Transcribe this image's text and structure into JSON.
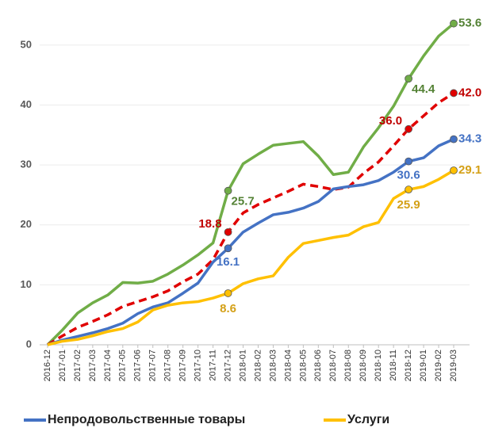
{
  "chart_data": {
    "type": "line",
    "categories": [
      "2016-12",
      "2017-01",
      "2017-02",
      "2017-03",
      "2017-04",
      "2017-05",
      "2017-06",
      "2017-07",
      "2017-08",
      "2017-09",
      "2017-10",
      "2017-11",
      "2017-12",
      "2018-01",
      "2018-02",
      "2018-03",
      "2018-04",
      "2018-05",
      "2018-06",
      "2018-07",
      "2018-08",
      "2018-09",
      "2018-10",
      "2018-11",
      "2018-12",
      "2019-01",
      "2019-02",
      "2019-03"
    ],
    "ylim": [
      0,
      57
    ],
    "yticks": [
      0,
      10,
      20,
      30,
      40,
      50
    ],
    "grid": true,
    "legend": "bottom",
    "series": [
      {
        "color": "#70ad47",
        "label_color": "#548235",
        "values": [
          0,
          2.5,
          5.3,
          7,
          8.3,
          10.4,
          10.3,
          10.6,
          11.8,
          13.3,
          15,
          17,
          25.7,
          30.2,
          31.8,
          33.3,
          33.6,
          33.9,
          31.5,
          28.4,
          28.8,
          33,
          36.2,
          39.8,
          44.4,
          48.2,
          51.5,
          53.6
        ],
        "value_labels": [
          null,
          null,
          null,
          null,
          null,
          null,
          null,
          null,
          null,
          null,
          null,
          null,
          "25.7",
          null,
          null,
          null,
          null,
          null,
          null,
          null,
          null,
          null,
          null,
          null,
          "44.4",
          null,
          null,
          "53.6"
        ]
      },
      {
        "color": "#e00000",
        "label_color": "#c00000",
        "dashed": true,
        "values": [
          0,
          1.5,
          2.9,
          3.9,
          5,
          6.4,
          7.2,
          8,
          9,
          10.5,
          11.8,
          14.2,
          18.8,
          22,
          23.4,
          24.5,
          25.6,
          26.8,
          26.4,
          25.9,
          26.3,
          28.6,
          30.5,
          33.2,
          36,
          38.2,
          40.4,
          42
        ],
        "value_labels": [
          null,
          null,
          null,
          null,
          null,
          null,
          null,
          null,
          null,
          null,
          null,
          null,
          "18.8",
          null,
          null,
          null,
          null,
          null,
          null,
          null,
          null,
          null,
          null,
          null,
          "36.0",
          null,
          null,
          "42.0"
        ]
      },
      {
        "name": "Непродовольственные товары",
        "color": "#4472c4",
        "label_color": "#4472c4",
        "values": [
          0,
          0.8,
          1.4,
          2,
          2.7,
          3.6,
          5.2,
          6.3,
          7,
          8.6,
          10.3,
          13.8,
          16.1,
          18.8,
          20.3,
          21.7,
          22.1,
          22.8,
          23.9,
          26,
          26.4,
          26.7,
          27.4,
          28.8,
          30.6,
          31.2,
          33.2,
          34.3
        ],
        "value_labels": [
          null,
          null,
          null,
          null,
          null,
          null,
          null,
          null,
          null,
          null,
          null,
          null,
          "16.1",
          null,
          null,
          null,
          null,
          null,
          null,
          null,
          null,
          null,
          null,
          null,
          "30.6",
          null,
          null,
          "34.3"
        ]
      },
      {
        "name": "Услуги",
        "color": "#ffc000",
        "label_color": "#d4a017",
        "values": [
          0,
          0.6,
          0.9,
          1.5,
          2.2,
          2.7,
          3.8,
          5.8,
          6.6,
          7,
          7.2,
          7.8,
          8.6,
          10.2,
          11,
          11.5,
          14.6,
          16.9,
          17.4,
          17.9,
          18.3,
          19.7,
          20.4,
          24.4,
          25.9,
          26.4,
          27.6,
          29.1
        ],
        "value_labels": [
          null,
          null,
          null,
          null,
          null,
          null,
          null,
          null,
          null,
          null,
          null,
          null,
          "8.6",
          null,
          null,
          null,
          null,
          null,
          null,
          null,
          null,
          null,
          null,
          null,
          "25.9",
          null,
          null,
          "29.1"
        ]
      }
    ]
  }
}
